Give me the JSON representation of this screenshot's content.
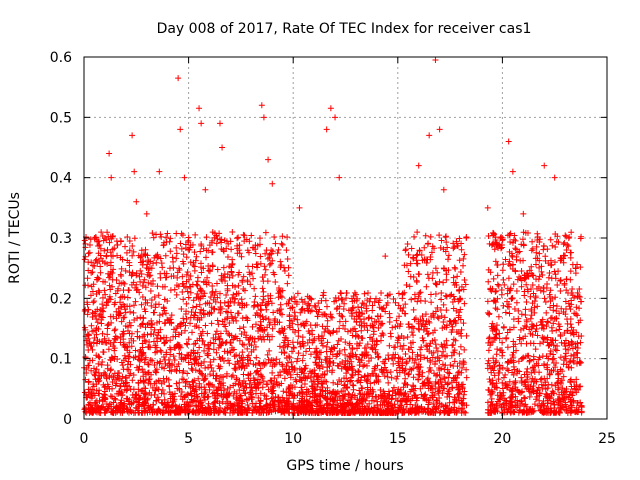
{
  "chart_data": {
    "type": "scatter",
    "title": "Day 008 of 2017, Rate Of TEC Index for receiver cas1",
    "xlabel": "GPS time / hours",
    "ylabel": "ROTI / TECUs",
    "xlim": [
      0,
      25
    ],
    "ylim": [
      0,
      0.6
    ],
    "x_ticks": [
      "0",
      "5",
      "10",
      "15",
      "20",
      "25"
    ],
    "y_ticks": [
      "0",
      "0.1",
      "0.2",
      "0.3",
      "0.4",
      "0.5",
      "0.6"
    ],
    "grid": true,
    "marker": "plus",
    "color": "#ff0000",
    "x_range_with_data": [
      0,
      23.8
    ],
    "data_gap_hours": [
      18.3,
      19.3
    ],
    "series": [
      {
        "x": [
          0.2,
          0.5,
          1.0,
          1.2,
          1.3,
          2.3,
          2.4,
          2.5,
          3.0,
          3.6,
          4.5,
          4.6,
          4.8,
          5.5,
          5.6,
          5.8,
          6.5,
          6.6,
          8.5,
          8.6,
          8.8,
          9.0,
          10.3,
          11.6,
          11.8,
          12.0,
          12.2,
          14.4,
          16.0,
          16.5,
          16.8,
          17.0,
          17.2,
          19.3,
          19.6,
          20.3,
          20.5,
          21.0,
          22.0,
          22.5,
          23.5
        ],
        "y": [
          0.26,
          0.3,
          0.3,
          0.44,
          0.4,
          0.47,
          0.41,
          0.36,
          0.34,
          0.41,
          0.565,
          0.48,
          0.4,
          0.515,
          0.49,
          0.38,
          0.49,
          0.45,
          0.52,
          0.5,
          0.43,
          0.39,
          0.35,
          0.48,
          0.515,
          0.5,
          0.4,
          0.27,
          0.42,
          0.47,
          0.595,
          0.48,
          0.38,
          0.35,
          0.29,
          0.46,
          0.41,
          0.34,
          0.42,
          0.4,
          0.25
        ]
      }
    ]
  }
}
